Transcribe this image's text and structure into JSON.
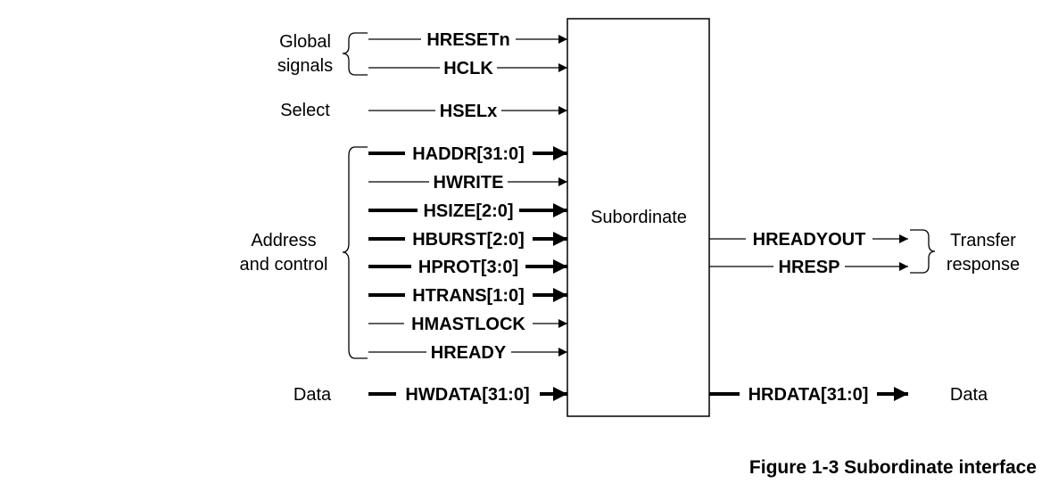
{
  "figure": {
    "block_label": "Subordinate",
    "caption": "Figure 1-3 Subordinate interface"
  },
  "groups": {
    "global": [
      "Global",
      "signals"
    ],
    "select": [
      "Select"
    ],
    "address": [
      "Address",
      "and control"
    ],
    "data_in": [
      "Data"
    ],
    "transfer": [
      "Transfer",
      "response"
    ],
    "data_out": [
      "Data"
    ]
  },
  "inputs": [
    {
      "name": "HRESETn",
      "bus": false
    },
    {
      "name": "HCLK",
      "bus": false
    },
    {
      "name": "HSELx",
      "bus": false
    },
    {
      "name": "HADDR[31:0]",
      "bus": true
    },
    {
      "name": "HWRITE",
      "bus": false
    },
    {
      "name": "HSIZE[2:0]",
      "bus": true
    },
    {
      "name": "HBURST[2:0]",
      "bus": true
    },
    {
      "name": "HPROT[3:0]",
      "bus": true
    },
    {
      "name": "HTRANS[1:0]",
      "bus": true
    },
    {
      "name": "HMASTLOCK",
      "bus": false
    },
    {
      "name": "HREADY",
      "bus": false
    },
    {
      "name": "HWDATA[31:0]",
      "bus": true
    }
  ],
  "outputs": [
    {
      "name": "HREADYOUT",
      "bus": false
    },
    {
      "name": "HRESP",
      "bus": false
    },
    {
      "name": "HRDATA[31:0]",
      "bus": true
    }
  ]
}
